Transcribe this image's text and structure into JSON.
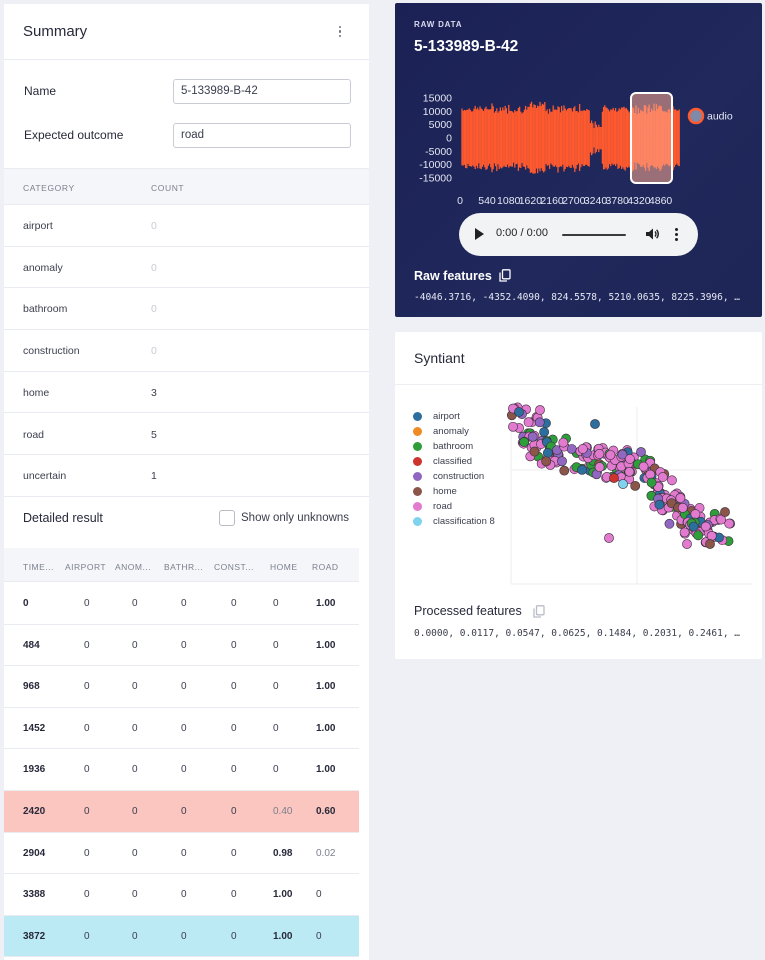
{
  "summary": {
    "title": "Summary",
    "name_label": "Name",
    "name_value": "5-133989-B-42",
    "expected_label": "Expected outcome",
    "expected_value": "road",
    "category_header": "CATEGORY",
    "count_header": "COUNT",
    "categories": [
      {
        "name": "airport",
        "count": "0"
      },
      {
        "name": "anomaly",
        "count": "0"
      },
      {
        "name": "bathroom",
        "count": "0"
      },
      {
        "name": "construction",
        "count": "0"
      },
      {
        "name": "home",
        "count": "3"
      },
      {
        "name": "road",
        "count": "5"
      },
      {
        "name": "uncertain",
        "count": "1"
      }
    ]
  },
  "detailed": {
    "title": "Detailed result",
    "checkbox_label": "Show only unknowns",
    "columns": [
      "TIME...",
      "AIRPORT",
      "ANOM...",
      "BATHR...",
      "CONST...",
      "HOME",
      "ROAD"
    ],
    "rows": [
      {
        "ts": "0",
        "v": [
          "0",
          "0",
          "0",
          "0",
          "0",
          "1.00"
        ],
        "hl": ""
      },
      {
        "ts": "484",
        "v": [
          "0",
          "0",
          "0",
          "0",
          "0",
          "1.00"
        ],
        "hl": ""
      },
      {
        "ts": "968",
        "v": [
          "0",
          "0",
          "0",
          "0",
          "0",
          "1.00"
        ],
        "hl": ""
      },
      {
        "ts": "1452",
        "v": [
          "0",
          "0",
          "0",
          "0",
          "0",
          "1.00"
        ],
        "hl": ""
      },
      {
        "ts": "1936",
        "v": [
          "0",
          "0",
          "0",
          "0",
          "0",
          "1.00"
        ],
        "hl": ""
      },
      {
        "ts": "2420",
        "v": [
          "0",
          "0",
          "0",
          "0",
          "0.40",
          "0.60"
        ],
        "hl": "red"
      },
      {
        "ts": "2904",
        "v": [
          "0",
          "0",
          "0",
          "0",
          "0.98",
          "0.02"
        ],
        "hl": ""
      },
      {
        "ts": "3388",
        "v": [
          "0",
          "0",
          "0",
          "0",
          "1.00",
          "0"
        ],
        "hl": ""
      },
      {
        "ts": "3872",
        "v": [
          "0",
          "0",
          "0",
          "0",
          "1.00",
          "0"
        ],
        "hl": "cyan"
      }
    ],
    "highlight_colors": {
      "red": "#fac6bf",
      "cyan": "#bbeaf4"
    }
  },
  "raw": {
    "eyebrow": "RAW DATA",
    "sample_id": "5-133989-B-42",
    "legend_label": "audio",
    "y_ticks": [
      "15000",
      "10000",
      "5000",
      "0",
      "-5000",
      "-10000",
      "-15000"
    ],
    "x_ticks": [
      "0",
      "540",
      "1080",
      "1620",
      "2160",
      "2700",
      "3240",
      "3780",
      "4320",
      "4860"
    ],
    "player_time": "0:00 / 0:00",
    "features_title": "Raw features",
    "features_values": "-4046.3716, -4352.4090, 824.5578, 5210.0635, 8225.3996, …",
    "wave_color": "#ff5a2e",
    "selection_color": "#ffa98e"
  },
  "syntiant": {
    "title": "Syntiant",
    "legend": [
      {
        "label": "airport",
        "color": "#2c6f9e"
      },
      {
        "label": "anomaly",
        "color": "#f08a24"
      },
      {
        "label": "bathroom",
        "color": "#2e9e3a"
      },
      {
        "label": "classified",
        "color": "#cd3430"
      },
      {
        "label": "construction",
        "color": "#9068c1"
      },
      {
        "label": "home",
        "color": "#8b5649"
      },
      {
        "label": "road",
        "color": "#e27ad0"
      },
      {
        "label": "classification 8",
        "color": "#7fd3ee"
      }
    ],
    "features_title": "Processed features",
    "features_values": "0.0000, 0.0117, 0.0547, 0.0625, 0.1484, 0.2031, 0.2461, …"
  }
}
